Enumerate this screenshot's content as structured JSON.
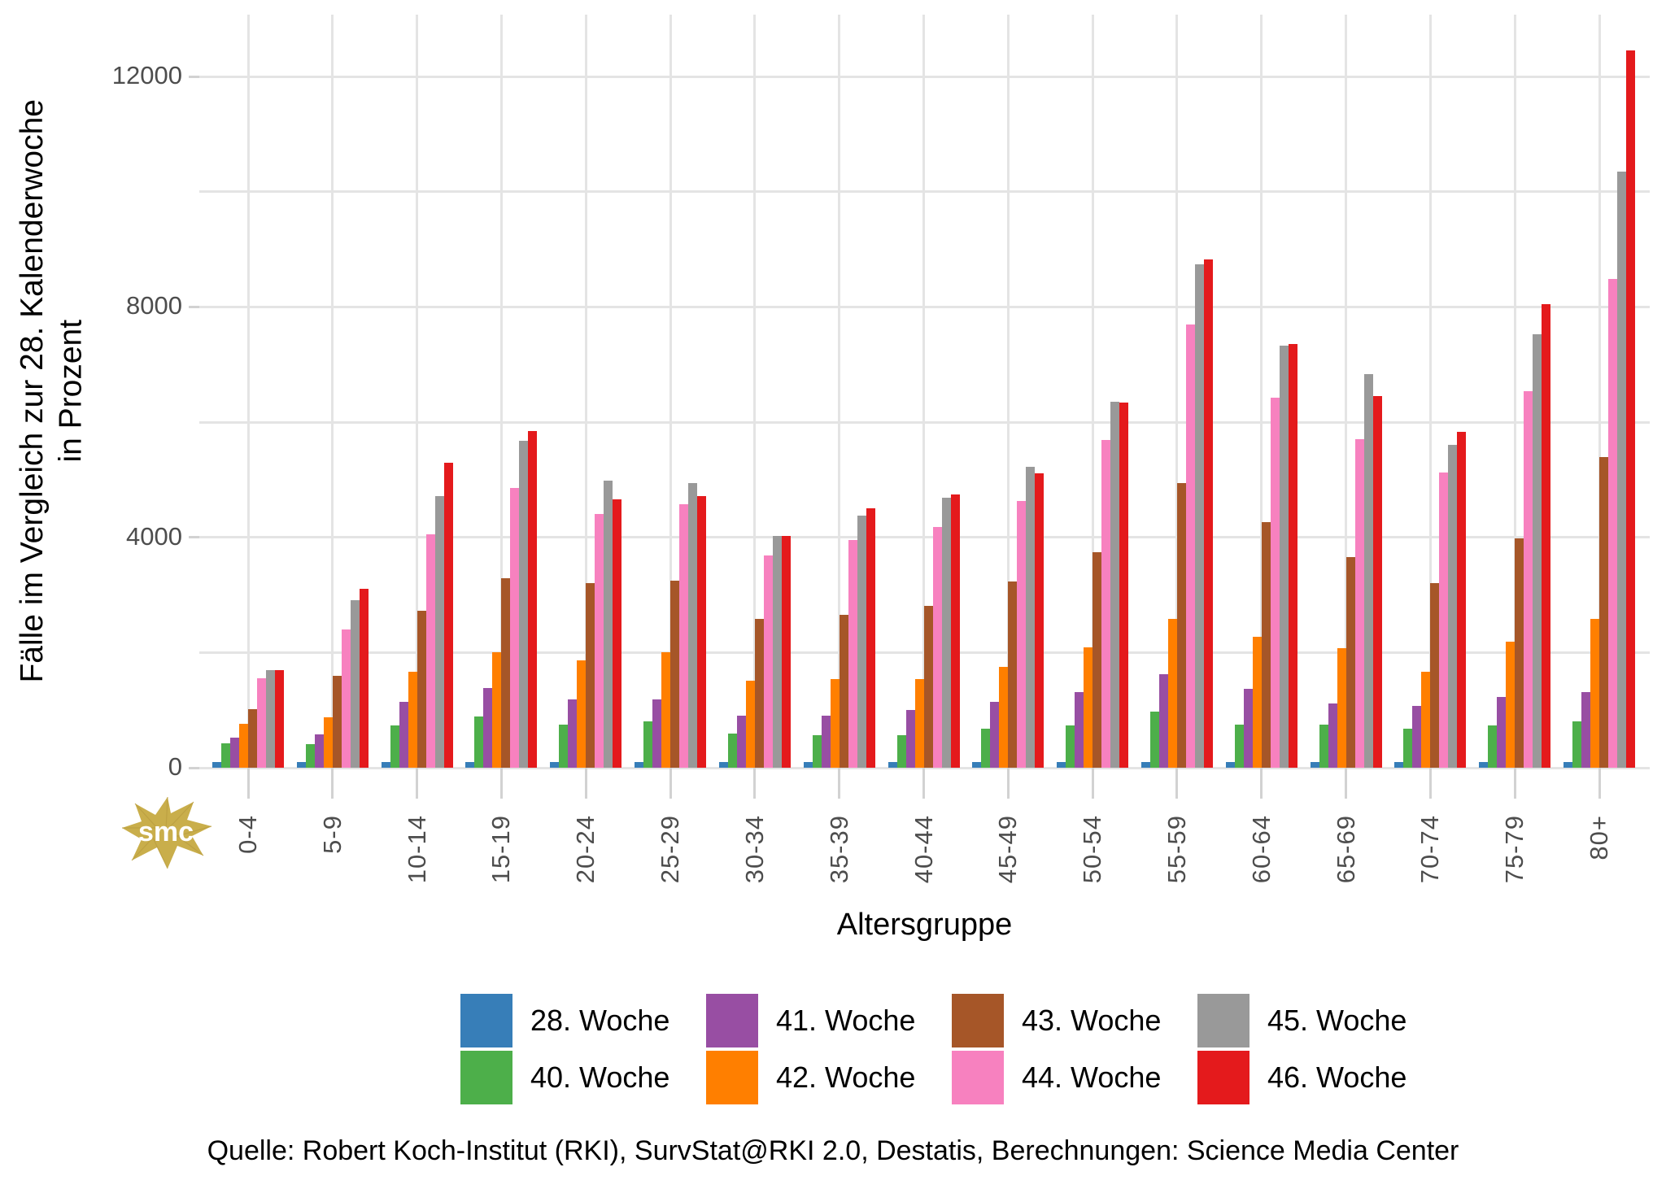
{
  "chart_data": {
    "type": "bar",
    "title": "",
    "xlabel": "Altersgruppe",
    "ylabel_line1": "Fälle im Vergleich zur 28. Kalenderwoche",
    "ylabel_line2": "in Prozent",
    "categories": [
      "0-4",
      "5-9",
      "10-14",
      "15-19",
      "20-24",
      "25-29",
      "30-34",
      "35-39",
      "40-44",
      "45-49",
      "50-54",
      "55-59",
      "60-64",
      "65-69",
      "70-74",
      "75-79",
      "80+"
    ],
    "series": [
      {
        "name": "28. Woche",
        "color": "#377EB8",
        "values": [
          100,
          100,
          100,
          100,
          100,
          100,
          100,
          100,
          100,
          100,
          100,
          100,
          100,
          100,
          100,
          100,
          100
        ]
      },
      {
        "name": "40. Woche",
        "color": "#4DAF4A",
        "values": [
          420,
          410,
          740,
          890,
          750,
          800,
          600,
          570,
          560,
          680,
          740,
          980,
          750,
          750,
          680,
          740,
          810
        ]
      },
      {
        "name": "41. Woche",
        "color": "#984EA3",
        "values": [
          520,
          580,
          1150,
          1390,
          1180,
          1190,
          900,
          900,
          1000,
          1150,
          1310,
          1630,
          1370,
          1110,
          1070,
          1230,
          1320
        ]
      },
      {
        "name": "42. Woche",
        "color": "#FF7F00",
        "values": [
          760,
          870,
          1660,
          2000,
          1870,
          2000,
          1510,
          1540,
          1540,
          1750,
          2090,
          2590,
          2280,
          2070,
          1660,
          2190,
          2580
        ]
      },
      {
        "name": "43. Woche",
        "color": "#A65628",
        "values": [
          1020,
          1600,
          2720,
          3290,
          3200,
          3250,
          2590,
          2660,
          2810,
          3230,
          3740,
          4940,
          4260,
          3660,
          3200,
          3980,
          5400
        ]
      },
      {
        "name": "44. Woche",
        "color": "#F781BF",
        "values": [
          1550,
          2400,
          4050,
          4860,
          4410,
          4580,
          3690,
          3960,
          4180,
          4630,
          5690,
          7700,
          6420,
          5710,
          5130,
          6540,
          8480
        ]
      },
      {
        "name": "45. Woche",
        "color": "#999999",
        "values": [
          1690,
          2910,
          4710,
          5670,
          4990,
          4940,
          4030,
          4380,
          4690,
          5220,
          6360,
          8740,
          7330,
          6830,
          5600,
          7530,
          10350
        ]
      },
      {
        "name": "46. Woche",
        "color": "#E41A1C",
        "values": [
          1690,
          3110,
          5290,
          5840,
          4660,
          4720,
          4030,
          4500,
          4750,
          5110,
          6340,
          8820,
          7360,
          6450,
          5830,
          8050,
          12450
        ]
      }
    ],
    "y_ticks": [
      0,
      4000,
      8000,
      12000
    ],
    "y_tick_labels": [
      "0",
      "4000",
      "8000",
      "12000"
    ],
    "y_minor_ticks": [
      2000,
      6000,
      10000
    ],
    "ylim": [
      0,
      13070
    ],
    "grid": true,
    "legend_position": "bottom",
    "legend_rows": 2,
    "legend_columns": 4
  },
  "caption": "Quelle: Robert Koch-Institut (RKI), SurvStat@RKI 2.0, Destatis, Berechnungen: Science Media Center",
  "watermark": "smc",
  "colors": {
    "axis_text": "#4d4d4d",
    "gridline": "#e4e4e4",
    "tick": "#d2d2d2",
    "watermark_gold": "#C9AE4B",
    "background": "#ffffff"
  }
}
